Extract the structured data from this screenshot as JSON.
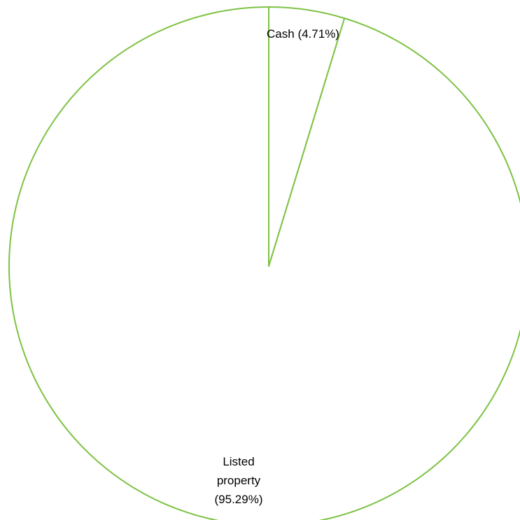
{
  "chart_data": {
    "type": "pie",
    "title": "",
    "slices": [
      {
        "label": "Cash (4.71%)",
        "value": 4.71,
        "label_lines": [
          "Cash (4.71%)"
        ]
      },
      {
        "label": "Listed property (95.29%)",
        "value": 95.29,
        "label_lines": [
          "Listed",
          "property",
          "(95.29%)"
        ]
      }
    ],
    "colors": {
      "fill": "#ffffff",
      "stroke": "#7dc243"
    },
    "legend": "none",
    "start_angle": "12 o'clock",
    "direction": "clockwise"
  }
}
